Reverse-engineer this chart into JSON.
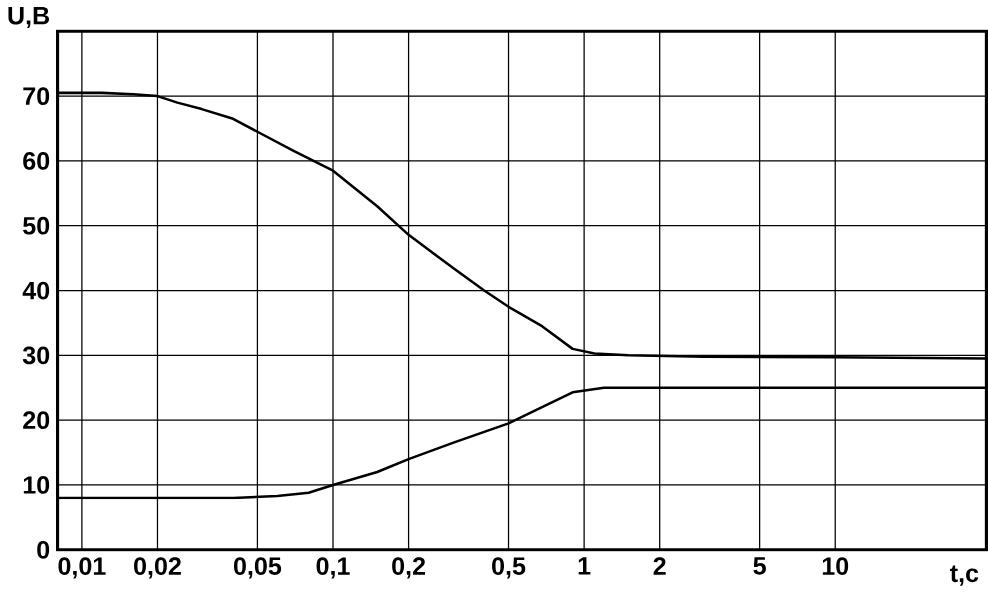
{
  "chart_data": {
    "type": "line",
    "xlabel": "t,c",
    "ylabel": "U,B",
    "log": "x",
    "grid": true,
    "marker": "none",
    "line_style": "solid",
    "xlim": [
      0.008,
      40
    ],
    "ylim": [
      0,
      80
    ],
    "xticks": [
      {
        "value": 0.01,
        "label": "0,01"
      },
      {
        "value": 0.02,
        "label": "0,02"
      },
      {
        "value": 0.05,
        "label": "0,05"
      },
      {
        "value": 0.1,
        "label": "0,1"
      },
      {
        "value": 0.2,
        "label": "0,2"
      },
      {
        "value": 0.5,
        "label": "0,5"
      },
      1,
      2,
      5,
      10
    ],
    "yticks": [
      0,
      10,
      20,
      30,
      40,
      50,
      60,
      70
    ],
    "series": [
      {
        "color": "#000000",
        "x": [
          0.008,
          0.012,
          0.016,
          0.02,
          0.024,
          0.03,
          0.04,
          0.05,
          0.07,
          0.1,
          0.15,
          0.2,
          0.3,
          0.4,
          0.5,
          0.68,
          0.9,
          1.1,
          1.5,
          3,
          10,
          40
        ],
        "values": [
          70.5,
          70.5,
          70.3,
          70,
          69,
          68,
          66.5,
          64.5,
          61.5,
          58.5,
          53,
          48.6,
          43.5,
          40,
          37.5,
          34.5,
          31,
          30.3,
          30,
          29.8,
          29.7,
          29.5
        ]
      },
      {
        "color": "#000000",
        "x": [
          0.008,
          0.02,
          0.04,
          0.06,
          0.08,
          0.1,
          0.15,
          0.2,
          0.3,
          0.5,
          0.68,
          0.9,
          1.2,
          2,
          10,
          40
        ],
        "values": [
          8,
          8,
          8,
          8.3,
          8.8,
          10,
          12,
          14,
          16.5,
          19.5,
          22,
          24.3,
          25,
          25,
          25,
          25
        ]
      }
    ]
  }
}
